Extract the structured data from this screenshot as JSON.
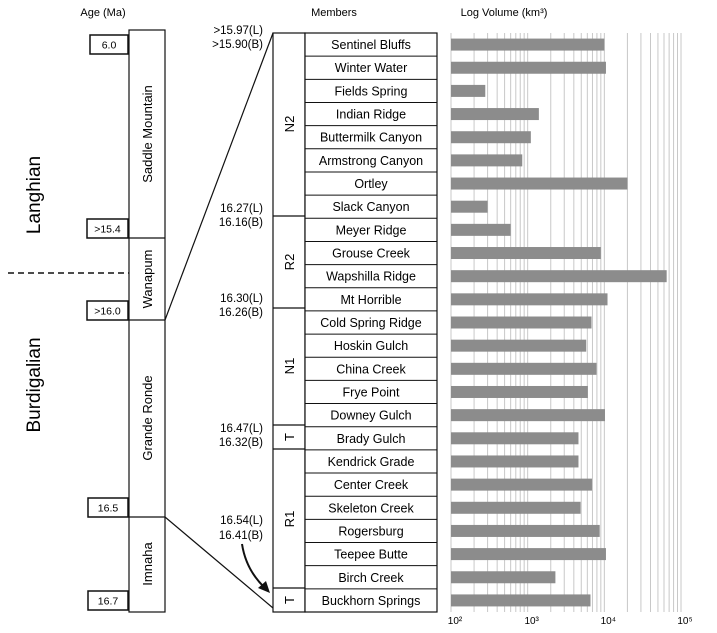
{
  "headers": {
    "age": "Age (Ma)",
    "members": "Members",
    "volume": "Log Volume (km³)"
  },
  "stages": [
    {
      "name": "Langhian"
    },
    {
      "name": "Burdigalian"
    }
  ],
  "age_labels": [
    {
      "text": "6.0"
    },
    {
      "text": ">15.4"
    },
    {
      "text": ">16.0"
    },
    {
      "text": "16.5"
    },
    {
      "text": "16.7"
    }
  ],
  "formations": [
    {
      "name": "Saddle Mountain"
    },
    {
      "name": "Wanapum"
    },
    {
      "name": "Grande Ronde"
    },
    {
      "name": "Imnaha"
    }
  ],
  "groups": [
    {
      "name": "N2"
    },
    {
      "name": "R2"
    },
    {
      "name": "N1"
    },
    {
      "name": "T"
    },
    {
      "name": "R1"
    },
    {
      "name": "T"
    }
  ],
  "boundary_dates": [
    {
      "l": ">15.97(L)",
      "b": ">15.90(B)"
    },
    {
      "l": "16.27(L)",
      "b": "16.16(B)"
    },
    {
      "l": "16.30(L)",
      "b": "16.26(B)"
    },
    {
      "l": "16.47(L)",
      "b": "16.32(B)"
    },
    {
      "l": "16.54(L)",
      "b": "16.41(B)"
    }
  ],
  "chart_data": {
    "type": "bar",
    "orientation": "horizontal",
    "title": "Log Volume (km³)",
    "xscale": "log",
    "xlim": [
      100,
      100000
    ],
    "tick_labels": [
      "10²",
      "10³",
      "10⁴",
      "10⁵"
    ],
    "categories": [
      "Sentinel Bluffs",
      "Winter Water",
      "Fields Spring",
      "Indian Ridge",
      "Buttermilk Canyon",
      "Armstrong Canyon",
      "Ortley",
      "Slack Canyon",
      "Meyer  Ridge",
      "Grouse Creek",
      "Wapshilla Ridge",
      "Mt Horrible",
      "Cold Spring Ridge",
      "Hoskin Gulch",
      "China Creek",
      "Frye Point",
      "Downey Gulch",
      "Brady Gulch",
      "Kendrick Grade",
      "Center Creek",
      "Skeleton Creek",
      "Rogersburg",
      "Teepee Butte",
      "Birch Creek",
      "Buckhorn Springs"
    ],
    "values": [
      10000,
      10500,
      280,
      1400,
      1100,
      850,
      20000,
      300,
      600,
      9000,
      65000,
      11000,
      6800,
      5800,
      7900,
      6100,
      10200,
      4600,
      4600,
      6900,
      4900,
      8700,
      10500,
      2300,
      6600
    ],
    "color": "#8c8c8c"
  }
}
